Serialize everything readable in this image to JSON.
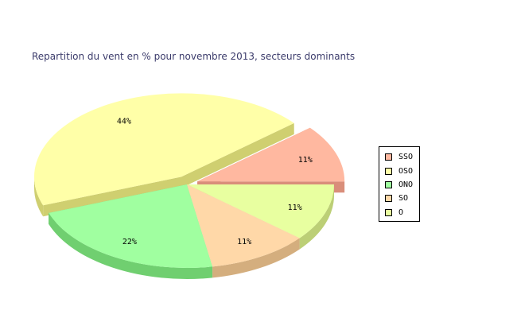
{
  "chart_data": {
    "type": "pie",
    "title": "Repartition du vent en % pour novembre 2013, secteurs dominants",
    "style": "3d",
    "legend_position": "right",
    "slices": [
      {
        "name": "SSO",
        "value": 11,
        "label": "11%",
        "color": "#ffb8a0",
        "side_color": "#d98e7a",
        "exploded": true
      },
      {
        "name": "OSO",
        "value": 44,
        "label": "44%",
        "color": "#ffffa8",
        "side_color": "#cfcf70",
        "exploded": true
      },
      {
        "name": "ONO",
        "value": 22,
        "label": "22%",
        "color": "#a0ffa0",
        "side_color": "#70cf70",
        "exploded": false
      },
      {
        "name": "SO",
        "value": 11,
        "label": "11%",
        "color": "#ffd8a8",
        "side_color": "#d4ae7e",
        "exploded": false
      },
      {
        "name": "O",
        "value": 11,
        "label": "11%",
        "color": "#e8ffa0",
        "side_color": "#bccf76",
        "exploded": false
      }
    ]
  }
}
